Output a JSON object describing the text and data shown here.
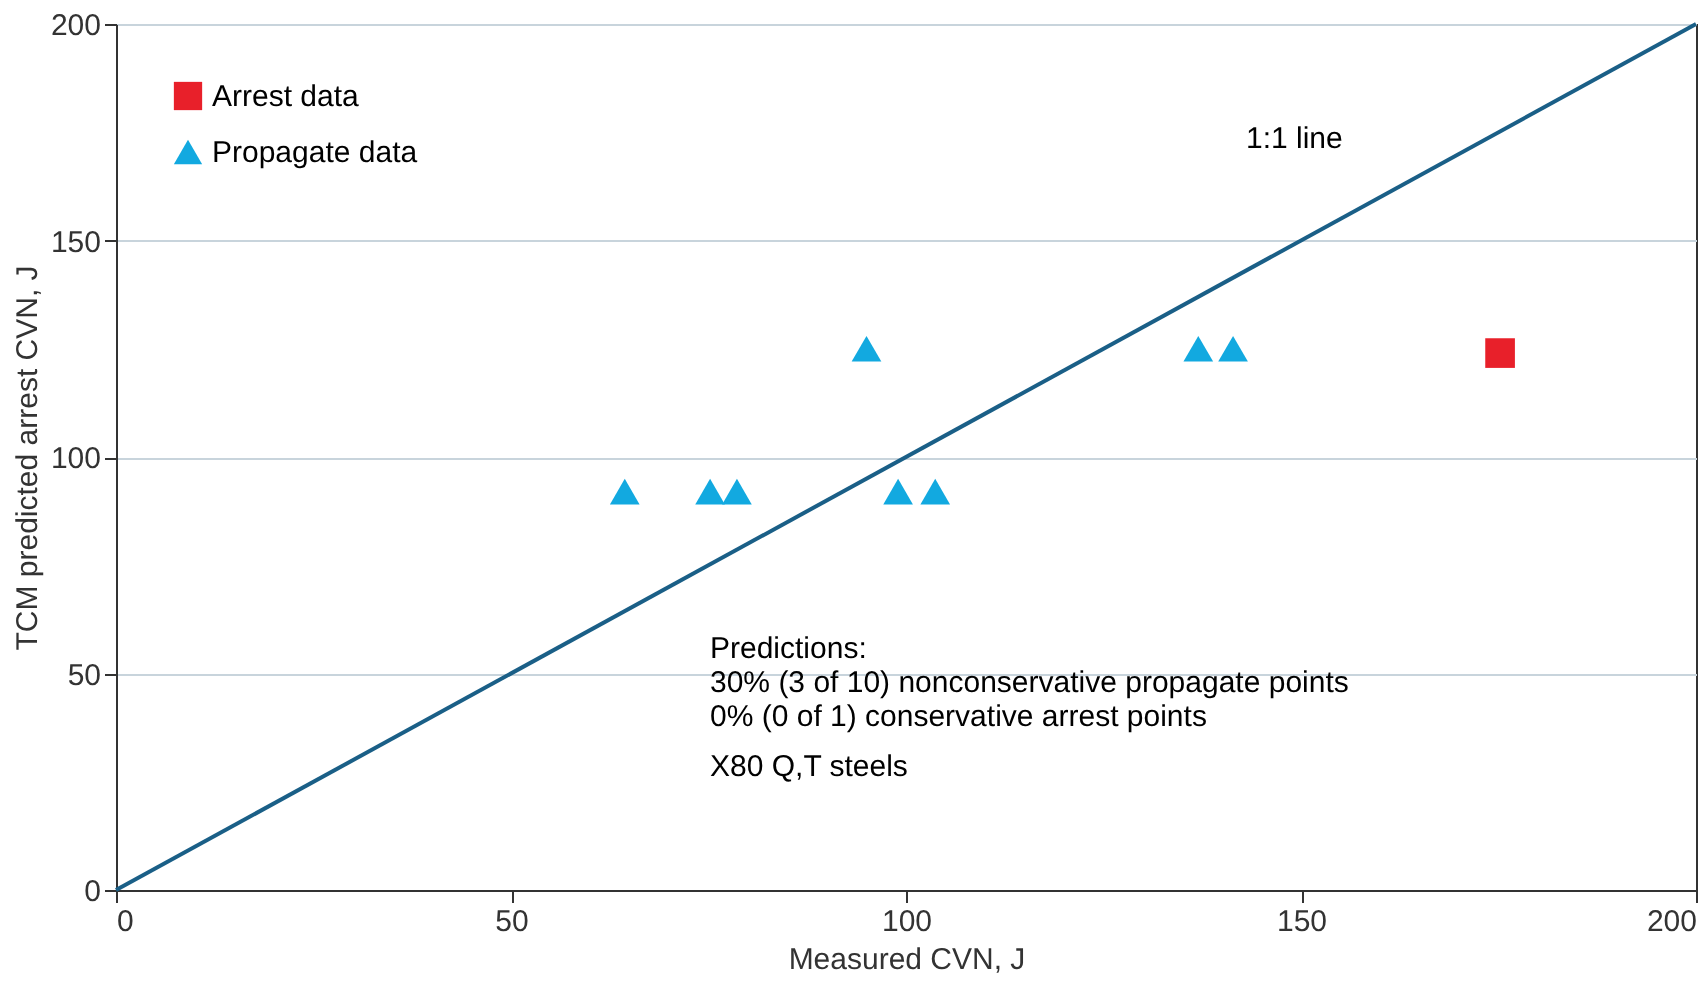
{
  "chart_data": {
    "type": "scatter",
    "xlabel": "Measured CVN, J",
    "ylabel": "TCM predicted arrest CVN, J",
    "xlim": [
      0,
      200
    ],
    "ylim": [
      0,
      200
    ],
    "xticks": [
      0,
      50,
      100,
      150,
      200
    ],
    "yticks": [
      0,
      50,
      100,
      150,
      200
    ],
    "grid": "y",
    "legend": "top left",
    "series": [
      {
        "name": "Arrest data",
        "color": "#e8202a",
        "marker": "square",
        "x": [
          175.2
        ],
        "values": [
          124
        ]
      },
      {
        "name": "Propagate data",
        "color": "#12a9e0",
        "marker": "triangle",
        "x": [
          64.4,
          75.2,
          78.6,
          95,
          99,
          103.7,
          137,
          141.4
        ],
        "values": [
          92,
          92,
          92,
          125,
          92,
          92,
          125,
          125
        ]
      },
      {
        "type": "line",
        "color": "#1a5f87",
        "marker": "none",
        "line_style": "solid",
        "x": [
          0,
          200
        ],
        "values": [
          0,
          200
        ]
      }
    ],
    "annotations": [
      "1:1 line",
      "Predictions:",
      "30% (3 of 10) nonconservative propagate points",
      "0% (0 of 1) conservative arrest points",
      "X80 Q,T steels"
    ]
  }
}
